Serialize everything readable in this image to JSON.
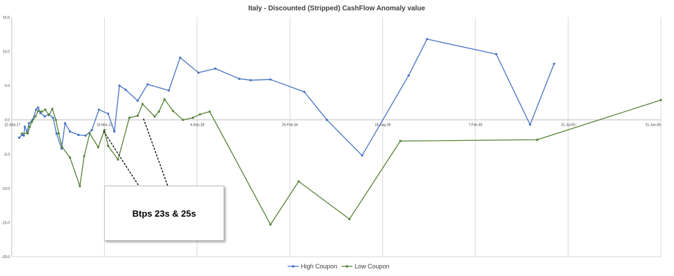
{
  "chart_data": {
    "type": "line",
    "title": "Italy - Discounted (Stripped) CashFlow Anomaly value",
    "xlabel": "",
    "ylabel": "",
    "ylim": [
      -20,
      15
    ],
    "yticks": [
      15.0,
      10.0,
      5.0,
      0.0,
      -5.0,
      -10.0,
      -15.0,
      -20.0
    ],
    "ytick_labels": [
      "15.0",
      "10.0",
      "5.0",
      "0.0",
      "-5.0",
      "-10.0",
      "-15.0",
      "-20.0"
    ],
    "xlim": [
      "2017-09-22",
      "2056-01-21"
    ],
    "xtick_labels": [
      "22-Sep-17",
      "15-Mar-23",
      "4-Sep-28",
      "25-Feb-34",
      "18-Aug-39",
      "7-Feb-45",
      "31-Jul-50",
      "21-Jan-56"
    ],
    "xtick_dates": [
      "2017-09-22",
      "2023-03-15",
      "2028-09-04",
      "2034-02-25",
      "2039-08-18",
      "2045-02-07",
      "2050-07-31",
      "2056-01-21"
    ],
    "grid": "vertical",
    "legend_position": "bottom",
    "series": [
      {
        "name": "High Coupon",
        "color": "#4472c4",
        "points": [
          [
            "2018-03-01",
            -2.6
          ],
          [
            "2018-05-01",
            -2.2
          ],
          [
            "2018-06-10",
            -2.3
          ],
          [
            "2018-07-01",
            -1.0
          ],
          [
            "2018-08-20",
            -1.8
          ],
          [
            "2018-10-01",
            -0.5
          ],
          [
            "2018-12-15",
            0.0
          ],
          [
            "2019-03-01",
            1.5
          ],
          [
            "2019-04-15",
            1.8
          ],
          [
            "2019-06-01",
            1.0
          ],
          [
            "2019-09-01",
            0.5
          ],
          [
            "2019-12-01",
            0.8
          ],
          [
            "2020-03-01",
            0.3
          ],
          [
            "2020-05-15",
            -2.0
          ],
          [
            "2020-09-01",
            -4.2
          ],
          [
            "2020-11-15",
            -0.5
          ],
          [
            "2021-03-01",
            -1.7
          ],
          [
            "2021-09-01",
            -2.2
          ],
          [
            "2022-02-01",
            -2.3
          ],
          [
            "2022-06-15",
            -1.5
          ],
          [
            "2022-11-15",
            1.5
          ],
          [
            "2023-06-01",
            0.9
          ],
          [
            "2023-10-15",
            -1.7
          ],
          [
            "2024-02-01",
            5.0
          ],
          [
            "2024-06-15",
            4.4
          ],
          [
            "2025-03-01",
            2.8
          ],
          [
            "2025-10-01",
            5.2
          ],
          [
            "2027-01-01",
            4.3
          ],
          [
            "2027-09-01",
            9.1
          ],
          [
            "2028-10-01",
            6.9
          ],
          [
            "2029-10-01",
            7.5
          ],
          [
            "2031-03-01",
            6.0
          ],
          [
            "2031-11-01",
            5.8
          ],
          [
            "2033-01-01",
            5.9
          ],
          [
            "2035-01-01",
            4.1
          ],
          [
            "2036-05-01",
            0.0
          ],
          [
            "2038-06-01",
            -5.2
          ],
          [
            "2041-03-01",
            6.5
          ],
          [
            "2042-04-01",
            11.8
          ],
          [
            "2046-05-01",
            9.6
          ],
          [
            "2048-05-01",
            -0.7
          ],
          [
            "2049-10-01",
            8.2
          ]
        ]
      },
      {
        "name": "Low Coupon",
        "color": "#548235",
        "points": [
          [
            "2018-05-01",
            -2.0
          ],
          [
            "2018-09-01",
            -2.0
          ],
          [
            "2018-10-15",
            -1.0
          ],
          [
            "2018-12-01",
            -0.3
          ],
          [
            "2019-02-15",
            0.5
          ],
          [
            "2019-04-15",
            1.3
          ],
          [
            "2019-07-01",
            1.2
          ],
          [
            "2019-09-15",
            1.5
          ],
          [
            "2019-12-01",
            0.7
          ],
          [
            "2020-02-15",
            1.6
          ],
          [
            "2020-05-01",
            0.0
          ],
          [
            "2020-07-01",
            -2.0
          ],
          [
            "2020-09-15",
            -4.0
          ],
          [
            "2021-03-01",
            -5.5
          ],
          [
            "2021-10-01",
            -9.7
          ],
          [
            "2022-01-01",
            -5.3
          ],
          [
            "2022-05-01",
            -2.0
          ],
          [
            "2022-11-01",
            -4.0
          ],
          [
            "2023-03-15",
            -1.5
          ],
          [
            "2023-06-01",
            -3.8
          ],
          [
            "2024-01-01",
            -5.8
          ],
          [
            "2024-09-01",
            0.3
          ],
          [
            "2025-03-01",
            0.6
          ],
          [
            "2025-06-15",
            2.3
          ],
          [
            "2026-03-01",
            0.5
          ],
          [
            "2026-06-01",
            1.2
          ],
          [
            "2026-10-01",
            3.0
          ],
          [
            "2027-04-01",
            1.3
          ],
          [
            "2027-11-01",
            0.0
          ],
          [
            "2028-06-01",
            0.3
          ],
          [
            "2028-11-01",
            0.8
          ],
          [
            "2029-06-01",
            1.2
          ],
          [
            "2033-01-01",
            -15.3
          ],
          [
            "2034-09-01",
            -9.0
          ],
          [
            "2037-09-01",
            -14.5
          ],
          [
            "2040-09-01",
            -3.1
          ],
          [
            "2048-10-01",
            -2.9
          ],
          [
            "2056-01-21",
            2.9
          ]
        ]
      }
    ]
  },
  "annotation": {
    "text": "Btps 23s & 25s"
  }
}
